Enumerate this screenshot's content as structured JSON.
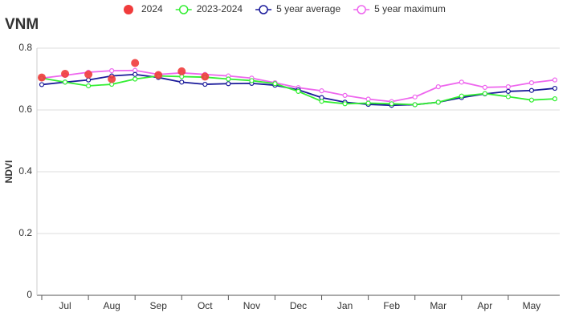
{
  "chart_data": {
    "type": "line",
    "title": "VNM",
    "y_label": "NDVI",
    "categories": [
      null,
      "Jul",
      null,
      "Aug",
      null,
      "Sep",
      null,
      "Oct",
      null,
      "Nov",
      null,
      "Dec",
      null,
      "Jan",
      null,
      "Feb",
      null,
      "Mar",
      null,
      "Apr",
      null,
      "May",
      null
    ],
    "series": [
      {
        "name": "2024",
        "color": "#f03c3c",
        "style": "dots",
        "values": [
          0.705,
          0.717,
          0.715,
          0.7,
          0.752,
          0.713,
          0.725,
          0.708,
          null,
          null,
          null,
          null,
          null,
          null,
          null,
          null,
          null,
          null,
          null,
          null,
          null,
          null,
          null
        ]
      },
      {
        "name": "2023-2024",
        "color": "#33ee33",
        "style": "line",
        "values": [
          0.703,
          0.69,
          0.678,
          0.683,
          0.7,
          0.71,
          0.708,
          0.706,
          0.7,
          0.695,
          0.685,
          0.66,
          0.628,
          0.62,
          0.622,
          0.62,
          0.617,
          0.625,
          0.645,
          0.653,
          0.643,
          0.632,
          0.636
        ]
      },
      {
        "name": "5 year average",
        "color": "#1a1a9a",
        "style": "line",
        "values": [
          0.682,
          0.69,
          0.697,
          0.71,
          0.715,
          0.705,
          0.69,
          0.683,
          0.685,
          0.686,
          0.68,
          0.665,
          0.64,
          0.625,
          0.618,
          0.615,
          0.617,
          0.625,
          0.64,
          0.652,
          0.66,
          0.663,
          0.67
        ]
      },
      {
        "name": "5 year maximum",
        "color": "#ee66ee",
        "style": "line",
        "values": [
          0.703,
          0.712,
          0.722,
          0.727,
          0.728,
          0.715,
          0.72,
          0.715,
          0.71,
          0.703,
          0.688,
          0.672,
          0.662,
          0.647,
          0.635,
          0.627,
          0.642,
          0.675,
          0.69,
          0.673,
          0.675,
          0.688,
          0.697
        ]
      }
    ],
    "ylim": [
      0,
      0.8
    ],
    "yticks": [
      0,
      0.2,
      0.4,
      0.6,
      0.8
    ],
    "grid": true,
    "legend": "top"
  }
}
